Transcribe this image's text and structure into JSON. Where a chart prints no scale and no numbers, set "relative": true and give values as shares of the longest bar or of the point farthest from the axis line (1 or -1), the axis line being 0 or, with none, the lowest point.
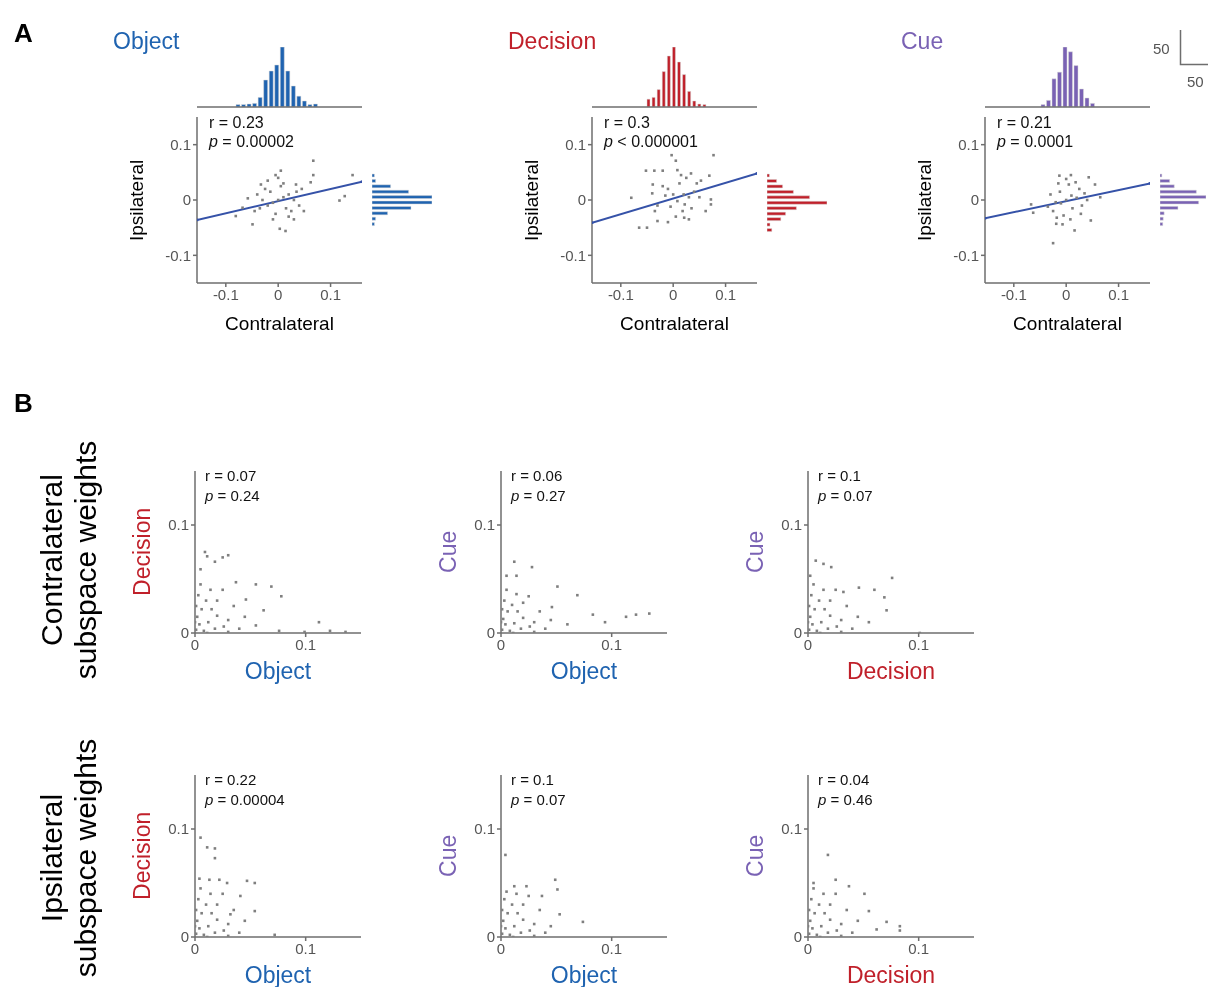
{
  "chart_data": [
    {
      "type": "bar",
      "title": "Object",
      "color": "#1f63b0",
      "relative": true,
      "categories": [
        null,
        null,
        null,
        null,
        null,
        null,
        null,
        null,
        null,
        null,
        null,
        null,
        null,
        null,
        null
      ],
      "values": [
        0.04,
        0.04,
        0.05,
        0.06,
        0.16,
        0.45,
        0.6,
        0.7,
        1,
        0.6,
        0.35,
        0.18,
        0.1,
        0.04,
        0.05
      ],
      "annotations": [
        "A"
      ]
    },
    {
      "type": "scatter",
      "xlabel": "Contralateral",
      "ylabel": "Ipsilateral",
      "marker": "square",
      "xlim": [
        -0.155,
        0.16
      ],
      "ylim": [
        -0.15,
        0.15
      ],
      "xticks": [
        -0.1,
        0,
        0.1
      ],
      "yticks": [
        -0.1,
        0,
        0.1
      ],
      "annotations": [
        "r = 0.23",
        "p = 0.00002"
      ],
      "series": [
        {
          "type": "scatter",
          "color": "#7f7f7f",
          "x": [
            0,
            0.01,
            -0.01,
            0.02,
            -0.02,
            0.015,
            -0.015,
            0.03,
            -0.03,
            0.005,
            -0.005,
            0.025,
            -0.025,
            0.035,
            -0.035,
            0.01,
            0.02,
            -0.01,
            0.04,
            -0.04,
            0.045,
            -0.045,
            0,
            -0.02,
            0.03,
            0.067,
            0.142,
            0.127,
            0.117,
            0.067,
            0.062,
            0.005,
            -0.005,
            -0.033,
            -0.049,
            0.014,
            0.003,
            -0.081,
            -0.068,
            -0.058,
            0.034,
            0.049
          ],
          "values": [
            0,
            0.005,
            -0.005,
            0.01,
            -0.01,
            -0.015,
            0.015,
            0,
            0,
            0.025,
            -0.025,
            -0.02,
            0.02,
            0.015,
            -0.015,
            0.03,
            -0.03,
            -0.035,
            -0.01,
            0.01,
            0.02,
            -0.02,
            0.04,
            0.035,
            -0.035,
            0.071,
            0.045,
            0.007,
            -0.001,
            0.045,
            0.032,
            0.053,
            0.045,
            0.028,
            -0.044,
            -0.056,
            -0.052,
            -0.029,
            -0.014,
            0.003,
            0.028,
            -0.02
          ]
        },
        {
          "type": "line",
          "color": "#3552a8",
          "x": [
            -0.155,
            0.16
          ],
          "values": [
            -0.036,
            0.033
          ]
        }
      ]
    },
    {
      "type": "bar",
      "orientation": "horizontal",
      "color": "#1f63b0",
      "relative": true,
      "categories": [
        null,
        null,
        null,
        null,
        null,
        null,
        null,
        null,
        null,
        null
      ],
      "values": [
        0.04,
        0.06,
        0.31,
        0.61,
        1,
        1,
        0.65,
        0.26,
        0.06,
        0.04
      ]
    },
    {
      "type": "bar",
      "title": "Decision",
      "color": "#c0202a",
      "relative": true,
      "categories": [
        null,
        null,
        null,
        null,
        null,
        null,
        null,
        null,
        null,
        null,
        null,
        null
      ],
      "values": [
        0.13,
        0.16,
        0.29,
        0.59,
        0.85,
        1,
        0.75,
        0.54,
        0.26,
        0.1,
        0.05,
        0.04
      ]
    },
    {
      "type": "scatter",
      "xlabel": "Contralateral",
      "ylabel": "Ipsilateral",
      "marker": "square",
      "xlim": [
        -0.155,
        0.16
      ],
      "ylim": [
        -0.15,
        0.15
      ],
      "xticks": [
        -0.1,
        0,
        0.1
      ],
      "yticks": [
        -0.1,
        0,
        0.1
      ],
      "annotations": [
        "r = 0.3",
        "p < 0.000001"
      ],
      "series": [
        {
          "type": "scatter",
          "color": "#7f7f7f",
          "x": [
            0.008,
            0.02,
            -0.005,
            0.03,
            -0.015,
            0.018,
            -0.01,
            0.04,
            -0.03,
            0.012,
            0.005,
            0.035,
            -0.02,
            0.045,
            -0.035,
            0.025,
            0.03,
            -0.01,
            0.05,
            -0.04,
            0.015,
            0,
            0.022,
            0.077,
            -0.003,
            0.005,
            -0.052,
            -0.036,
            -0.02,
            0.008,
            0.034,
            0.069,
            0.053,
            -0.08,
            0.072,
            0.072,
            -0.065,
            -0.05,
            -0.03,
            0.021,
            0.062,
            -0.039
          ],
          "values": [
            -0.002,
            0.01,
            -0.012,
            0.005,
            0.008,
            -0.02,
            0.02,
            0.015,
            -0.01,
            0.03,
            -0.03,
            -0.015,
            0.025,
            0.03,
            -0.02,
            0.04,
            -0.035,
            -0.04,
            0.005,
            0.012,
            0.045,
            0.01,
            -0.008,
            0.081,
            0.081,
            0.071,
            0.053,
            0.053,
            0.053,
            0.054,
            0.048,
            0.044,
            0.035,
            0.004,
            0.001,
            -0.008,
            -0.05,
            -0.05,
            -0.038,
            -0.032,
            -0.02,
            0.028
          ]
        },
        {
          "type": "line",
          "color": "#3552a8",
          "x": [
            -0.155,
            0.16
          ],
          "values": [
            -0.041,
            0.048
          ]
        }
      ]
    },
    {
      "type": "bar",
      "orientation": "horizontal",
      "color": "#c0202a",
      "relative": true,
      "categories": [
        null,
        null,
        null,
        null,
        null,
        null,
        null,
        null,
        null,
        null,
        null
      ],
      "values": [
        0.04,
        0.16,
        0.26,
        0.44,
        0.71,
        1,
        0.49,
        0.31,
        0.23,
        0.05,
        0.08
      ]
    },
    {
      "type": "bar",
      "title": "Cue",
      "color": "#7a62b4",
      "relative": true,
      "categories": [
        null,
        null,
        null,
        null,
        null,
        null,
        null,
        null,
        null,
        null
      ],
      "values": [
        0.04,
        0.11,
        0.47,
        0.58,
        1,
        0.92,
        0.69,
        0.3,
        0.15,
        0.06
      ],
      "annotations": [
        "50",
        "50"
      ]
    },
    {
      "type": "scatter",
      "xlabel": "Contralateral",
      "ylabel": "Ipsilateral",
      "marker": "square",
      "xlim": [
        -0.155,
        0.16
      ],
      "ylim": [
        -0.15,
        0.15
      ],
      "xticks": [
        -0.1,
        0,
        0.1
      ],
      "yticks": [
        -0.1,
        0,
        0.1
      ],
      "annotations": [
        "r = 0.21",
        "p = 0.0001"
      ],
      "series": [
        {
          "type": "scatter",
          "color": "#7f7f7f",
          "x": [
            0,
            0.01,
            -0.01,
            0.02,
            -0.02,
            0.012,
            -0.012,
            0.025,
            -0.025,
            0.005,
            -0.005,
            0.03,
            -0.03,
            0.018,
            -0.018,
            0.035,
            -0.035,
            0,
            0.008,
            -0.015,
            0.028,
            0.04,
            -0.013,
            0.009,
            0.043,
            0.055,
            0.065,
            -0.067,
            -0.063,
            -0.025,
            0.016,
            0.047,
            -0.019,
            -0.007
          ],
          "values": [
            0,
            0.008,
            -0.006,
            0.004,
            -0.004,
            -0.015,
            0.015,
            0.02,
            -0.02,
            0.028,
            -0.028,
            -0.01,
            0.01,
            0.032,
            -0.032,
            0.012,
            -0.012,
            0.038,
            -0.035,
            0.03,
            -0.025,
            0,
            0.044,
            0.045,
            0.041,
            0.028,
            0.005,
            -0.008,
            -0.023,
            -0.078,
            -0.055,
            -0.037,
            -0.043,
            -0.044
          ]
        },
        {
          "type": "line",
          "color": "#3552a8",
          "x": [
            -0.155,
            0.16
          ],
          "values": [
            -0.033,
            0.03
          ]
        }
      ]
    },
    {
      "type": "bar",
      "orientation": "horizontal",
      "color": "#7a62b4",
      "relative": true,
      "categories": [
        null,
        null,
        null,
        null,
        null,
        null,
        null,
        null,
        null,
        null
      ],
      "values": [
        0.04,
        0.21,
        0.31,
        0.79,
        1,
        0.84,
        0.39,
        0.09,
        0.07,
        0.06
      ]
    },
    {
      "type": "scatter",
      "xlabel": "Object",
      "ylabel": "Decision",
      "marker": "square",
      "xlim": [
        0,
        0.15
      ],
      "ylim": [
        0,
        0.15
      ],
      "xticks": [
        0,
        0.1
      ],
      "yticks": [
        0,
        0.1
      ],
      "annotations": [
        "r = 0.07",
        "p = 0.24",
        "B",
        "Contralateral subspace weights"
      ],
      "series": [
        {
          "type": "scatter",
          "color": "#7f7f7f",
          "x": [
            0.001,
            0.004,
            0.008,
            0.002,
            0.012,
            0.018,
            0.006,
            0.02,
            0.026,
            0.01,
            0.015,
            0.03,
            0.003,
            0.035,
            0.02,
            0.04,
            0.025,
            0.005,
            0.045,
            0.014,
            0,
            0.011,
            0.03,
            0.001,
            0.009,
            0.011,
            0.018,
            0.025,
            0.03,
            0.005,
            0.037,
            0.055,
            0.069,
            0.078,
            0.055,
            0.076,
            0.099,
            0.112,
            0.122,
            0.136,
            0.046,
            0.062
          ],
          "values": [
            0.003,
            0.008,
            0.002,
            0.015,
            0.01,
            0.004,
            0.022,
            0.016,
            0.006,
            0.03,
            0.022,
            0.012,
            0.035,
            0.025,
            0.03,
            0.004,
            0.04,
            0.045,
            0.015,
            0.04,
            0.01,
            0,
            0.001,
            0.025,
            0.075,
            0.071,
            0.066,
            0.07,
            0.072,
            0.059,
            0.047,
            0.045,
            0.043,
            0.034,
            0.007,
            0.002,
            0.001,
            0.01,
            0.002,
            0.001,
            0.031,
            0.021
          ]
        }
      ]
    },
    {
      "type": "scatter",
      "xlabel": "Object",
      "ylabel": "Cue",
      "marker": "square",
      "xlim": [
        0,
        0.15
      ],
      "ylim": [
        0,
        0.15
      ],
      "xticks": [
        0,
        0.1
      ],
      "yticks": [
        0,
        0.1
      ],
      "annotations": [
        "r = 0.06",
        "p = 0.27"
      ],
      "series": [
        {
          "type": "scatter",
          "color": "#7f7f7f",
          "x": [
            0.001,
            0.004,
            0.008,
            0.002,
            0.012,
            0.018,
            0.006,
            0.02,
            0.026,
            0.01,
            0.015,
            0.03,
            0.003,
            0.035,
            0.02,
            0.04,
            0.025,
            0.005,
            0.045,
            0.014,
            0,
            0.011,
            0.03,
            0.001,
            0.012,
            0.028,
            0.014,
            0.005,
            0.051,
            0.069,
            0.046,
            0.113,
            0.122,
            0.134,
            0.094,
            0.083,
            0.06
          ],
          "values": [
            0.003,
            0.008,
            0.002,
            0.013,
            0.009,
            0.004,
            0.02,
            0.014,
            0.006,
            0.026,
            0.02,
            0.01,
            0.03,
            0.02,
            0.028,
            0.004,
            0.034,
            0.04,
            0.012,
            0.036,
            0.01,
            0,
            0.001,
            0.022,
            0.066,
            0.061,
            0.053,
            0.053,
            0.043,
            0.035,
            0.024,
            0.015,
            0.017,
            0.018,
            0.01,
            0.017,
            0.008
          ]
        }
      ]
    },
    {
      "type": "scatter",
      "xlabel": "Decision",
      "ylabel": "Cue",
      "marker": "square",
      "xlim": [
        0,
        0.15
      ],
      "ylim": [
        0,
        0.15
      ],
      "xticks": [
        0,
        0.1
      ],
      "yticks": [
        0,
        0.1
      ],
      "annotations": [
        "r = 0.1",
        "p = 0.07"
      ],
      "series": [
        {
          "type": "scatter",
          "color": "#7f7f7f",
          "x": [
            0.001,
            0.004,
            0.008,
            0.002,
            0.012,
            0.018,
            0.006,
            0.02,
            0.026,
            0.01,
            0.015,
            0.03,
            0.003,
            0.035,
            0.02,
            0.04,
            0.025,
            0.005,
            0.045,
            0.014,
            0,
            0.011,
            0.03,
            0.001,
            0.007,
            0.014,
            0.021,
            0.076,
            0.06,
            0.069,
            0.071,
            0.046,
            0.032,
            0.101,
            0.002,
            0.055
          ],
          "values": [
            0.003,
            0.008,
            0.002,
            0.015,
            0.01,
            0.004,
            0.022,
            0.016,
            0.006,
            0.03,
            0.022,
            0.012,
            0.035,
            0.025,
            0.03,
            0.004,
            0.04,
            0.045,
            0.015,
            0.04,
            0.01,
            0,
            0.001,
            0.025,
            0.067,
            0.064,
            0.061,
            0.051,
            0.04,
            0.033,
            0.021,
            0.042,
            0.038,
            0,
            0.053,
            0.01
          ]
        }
      ]
    },
    {
      "type": "scatter",
      "xlabel": "Object",
      "ylabel": "Decision",
      "marker": "square",
      "xlim": [
        0,
        0.15
      ],
      "ylim": [
        0,
        0.15
      ],
      "xticks": [
        0,
        0.1
      ],
      "yticks": [
        0,
        0.1
      ],
      "annotations": [
        "r = 0.22",
        "p = 0.00004",
        "Ipsilateral subspace weights"
      ],
      "series": [
        {
          "type": "scatter",
          "color": "#7f7f7f",
          "x": [
            0.001,
            0.004,
            0.008,
            0.002,
            0.012,
            0.018,
            0.006,
            0.02,
            0.026,
            0.01,
            0.015,
            0.03,
            0.003,
            0.035,
            0.02,
            0.04,
            0.025,
            0.005,
            0.045,
            0.014,
            0,
            0.011,
            0.03,
            0.001,
            0.005,
            0.011,
            0.018,
            0.018,
            0.004,
            0.013,
            0.022,
            0.029,
            0.047,
            0.054,
            0.041,
            0.054,
            0.072,
            0.032
          ],
          "values": [
            0.003,
            0.008,
            0.002,
            0.015,
            0.01,
            0.004,
            0.022,
            0.016,
            0.006,
            0.03,
            0.022,
            0.012,
            0.035,
            0.025,
            0.03,
            0.004,
            0.04,
            0.045,
            0.015,
            0.04,
            0.01,
            0,
            0.001,
            0.025,
            0.092,
            0.083,
            0.082,
            0.073,
            0.054,
            0.053,
            0.053,
            0.05,
            0.052,
            0.05,
            0.038,
            0.024,
            0.002,
            0.021
          ]
        }
      ]
    },
    {
      "type": "scatter",
      "xlabel": "Object",
      "ylabel": "Cue",
      "marker": "square",
      "xlim": [
        0,
        0.15
      ],
      "ylim": [
        0,
        0.15
      ],
      "xticks": [
        0,
        0.1
      ],
      "yticks": [
        0,
        0.1
      ],
      "annotations": [
        "r = 0.1",
        "p = 0.07"
      ],
      "series": [
        {
          "type": "scatter",
          "color": "#7f7f7f",
          "x": [
            0.001,
            0.004,
            0.008,
            0.002,
            0.012,
            0.018,
            0.006,
            0.02,
            0.026,
            0.01,
            0.015,
            0.03,
            0.003,
            0.035,
            0.02,
            0.04,
            0.025,
            0.005,
            0.014,
            0,
            0.011,
            0.03,
            0.001,
            0.004,
            0.049,
            0.051,
            0.037,
            0.053,
            0.074,
            0.023,
            0.012,
            0.045
          ],
          "values": [
            0.003,
            0.008,
            0.002,
            0.015,
            0.01,
            0.004,
            0.022,
            0.016,
            0.006,
            0.03,
            0.022,
            0.012,
            0.035,
            0.025,
            0.03,
            0.004,
            0.038,
            0.042,
            0.04,
            0.01,
            0,
            0.001,
            0.025,
            0.076,
            0.053,
            0.044,
            0.038,
            0.021,
            0.014,
            0.047,
            0.047,
            0.01
          ]
        }
      ]
    },
    {
      "type": "scatter",
      "xlabel": "Decision",
      "ylabel": "Cue",
      "marker": "square",
      "xlim": [
        0,
        0.15
      ],
      "ylim": [
        0,
        0.15
      ],
      "xticks": [
        0,
        0.1
      ],
      "yticks": [
        0,
        0.1
      ],
      "annotations": [
        "r = 0.04",
        "p = 0.46"
      ],
      "series": [
        {
          "type": "scatter",
          "color": "#7f7f7f",
          "x": [
            0.001,
            0.004,
            0.008,
            0.002,
            0.012,
            0.018,
            0.006,
            0.02,
            0.026,
            0.01,
            0.015,
            0.03,
            0.003,
            0.035,
            0.02,
            0.04,
            0.025,
            0.005,
            0.045,
            0.014,
            0,
            0.011,
            0.03,
            0.001,
            0.018,
            0.025,
            0.037,
            0.051,
            0.055,
            0.071,
            0.083,
            0.083,
            0.062,
            0.005
          ],
          "values": [
            0.003,
            0.008,
            0.002,
            0.015,
            0.01,
            0.004,
            0.022,
            0.016,
            0.006,
            0.03,
            0.022,
            0.012,
            0.035,
            0.025,
            0.03,
            0.004,
            0.04,
            0.045,
            0.015,
            0.04,
            0.01,
            0,
            0.001,
            0.025,
            0.076,
            0.053,
            0.047,
            0.04,
            0.024,
            0.014,
            0.01,
            0.006,
            0.007,
            0.05
          ]
        }
      ]
    }
  ]
}
